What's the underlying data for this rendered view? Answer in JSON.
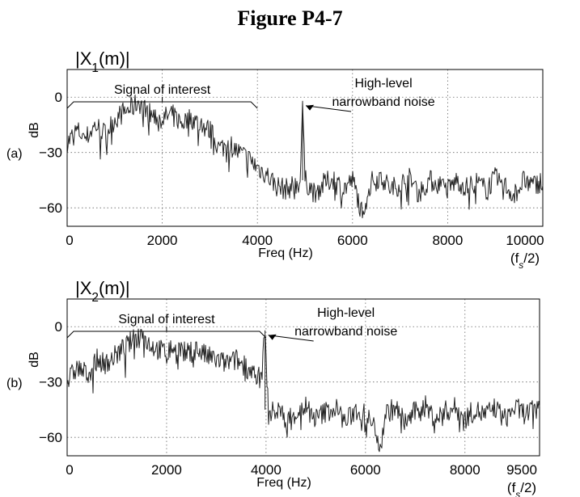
{
  "title": "Figure P4-7",
  "chart_data": [
    {
      "type": "line",
      "panel": "(a)",
      "magnitude_label": {
        "prefix": "|X",
        "sub": "1",
        "suffix": "(m)|"
      },
      "xlabel": "Freq (Hz)",
      "ylabel": "dB",
      "xlim": [
        0,
        10000
      ],
      "ylim": [
        -70,
        15
      ],
      "xticks": [
        0,
        2000,
        4000,
        6000,
        8000,
        10000
      ],
      "xtick_labels": [
        "0",
        "2000",
        "4000",
        "6000",
        "8000",
        "10000"
      ],
      "xtick_note": {
        "prefix": "(f",
        "sub": "s",
        "suffix": "/2)"
      },
      "yticks": [
        0,
        -30,
        -60
      ],
      "ytick_labels": [
        "0",
        "−30",
        "−60"
      ],
      "grid": true,
      "annotations": {
        "signal": "Signal of interest",
        "signal_range": [
          0,
          4000
        ],
        "noise_line1": "High-level",
        "noise_line2": "narrowband noise",
        "noise_freq": 4950,
        "noise_level": -2
      },
      "series": [
        {
          "x": [
            0,
            200,
            400,
            600,
            800,
            1000,
            1200,
            1400,
            1500,
            1600,
            1800,
            2000,
            2200,
            2400,
            2600,
            2800,
            3000,
            3200,
            3400,
            3600,
            3800,
            4000,
            4200,
            4400,
            4600,
            4900,
            4950,
            5000,
            5200,
            5400,
            5600,
            5800,
            6000,
            6200,
            6400,
            6600,
            6800,
            7000,
            7200,
            7400,
            7600,
            7800,
            8000,
            8200,
            8400,
            8600,
            8800,
            9000,
            9200,
            9400,
            9600,
            9800,
            10000
          ],
          "y": [
            -25,
            -18,
            -22,
            -15,
            -20,
            -12,
            -8,
            -5,
            -2,
            -6,
            -10,
            -12,
            -9,
            -14,
            -11,
            -15,
            -18,
            -28,
            -25,
            -30,
            -33,
            -38,
            -42,
            -48,
            -50,
            -46,
            -2,
            -45,
            -52,
            -47,
            -44,
            -50,
            -45,
            -62,
            -46,
            -43,
            -50,
            -47,
            -44,
            -52,
            -45,
            -47,
            -50,
            -45,
            -49,
            -46,
            -50,
            -44,
            -48,
            -53,
            -45,
            -48,
            -45
          ]
        }
      ]
    },
    {
      "type": "line",
      "panel": "(b)",
      "magnitude_label": {
        "prefix": "|X",
        "sub": "2",
        "suffix": "(m)|"
      },
      "xlabel": "Freq (Hz)",
      "ylabel": "dB",
      "xlim": [
        0,
        9500
      ],
      "ylim": [
        -70,
        15
      ],
      "xticks": [
        0,
        2000,
        4000,
        6000,
        8000,
        9500
      ],
      "xtick_labels": [
        "0",
        "2000",
        "4000",
        "6000",
        "8000",
        "9500"
      ],
      "xtick_note": {
        "prefix": "(f",
        "sub": "s",
        "suffix": "/2)"
      },
      "yticks": [
        0,
        -30,
        -60
      ],
      "ytick_labels": [
        "0",
        "−30",
        "−60"
      ],
      "grid": true,
      "annotations": {
        "signal": "Signal of interest",
        "signal_range": [
          0,
          4000
        ],
        "noise_line1": "High-level",
        "noise_line2": "narrowband noise",
        "noise_freq": 3980,
        "noise_level": -2
      },
      "series": [
        {
          "x": [
            0,
            200,
            400,
            600,
            800,
            1000,
            1200,
            1400,
            1500,
            1600,
            1800,
            2000,
            2200,
            2400,
            2600,
            2800,
            3000,
            3200,
            3400,
            3600,
            3800,
            3900,
            3980,
            4050,
            4200,
            4400,
            4600,
            4800,
            5000,
            5200,
            5400,
            5600,
            5800,
            6000,
            6200,
            6300,
            6400,
            6600,
            6800,
            7000,
            7200,
            7400,
            7600,
            7800,
            8000,
            8200,
            8400,
            8600,
            8800,
            9000,
            9200,
            9500
          ],
          "y": [
            -30,
            -22,
            -26,
            -18,
            -20,
            -15,
            -10,
            -6,
            -3,
            -8,
            -12,
            -14,
            -10,
            -15,
            -12,
            -16,
            -18,
            -20,
            -18,
            -22,
            -25,
            -30,
            -2,
            -48,
            -45,
            -50,
            -47,
            -43,
            -50,
            -46,
            -44,
            -52,
            -45,
            -48,
            -55,
            -65,
            -47,
            -44,
            -52,
            -46,
            -43,
            -50,
            -46,
            -44,
            -50,
            -45,
            -48,
            -44,
            -50,
            -44,
            -47,
            -45
          ]
        }
      ]
    }
  ]
}
